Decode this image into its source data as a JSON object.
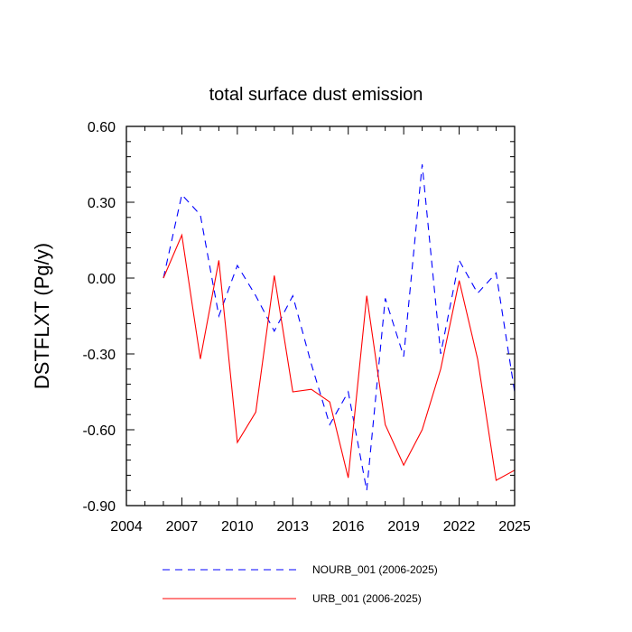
{
  "chart_data": {
    "type": "line",
    "title": "total surface dust emission",
    "xlabel": "",
    "ylabel": "DSTFLXT  (Pg/y)",
    "xlim": [
      2004,
      2025
    ],
    "ylim": [
      -0.9,
      0.6
    ],
    "xticks": [
      2004,
      2007,
      2010,
      2013,
      2016,
      2019,
      2022,
      2025
    ],
    "xtick_labels": [
      "2004",
      "2007",
      "2010",
      "2013",
      "2016",
      "2019",
      "2022",
      "2025"
    ],
    "yticks": [
      -0.9,
      -0.6,
      -0.3,
      0.0,
      0.3,
      0.6
    ],
    "ytick_labels": [
      "-0.90",
      "-0.60",
      "-0.30",
      "0.00",
      "0.30",
      "0.60"
    ],
    "grid": false,
    "legend_position": "bottom",
    "x": [
      2006,
      2007,
      2008,
      2009,
      2010,
      2011,
      2012,
      2013,
      2014,
      2015,
      2016,
      2017,
      2018,
      2019,
      2020,
      2021,
      2022,
      2023,
      2024,
      2025
    ],
    "series": [
      {
        "name": "NOURB_001 (2006-2025)",
        "color": "#0000ff",
        "dash": "dashed",
        "values": [
          0.0,
          0.33,
          0.25,
          -0.15,
          0.05,
          -0.07,
          -0.21,
          -0.07,
          -0.34,
          -0.58,
          -0.45,
          -0.84,
          -0.08,
          -0.31,
          0.45,
          -0.3,
          0.07,
          -0.06,
          0.02,
          -0.45
        ]
      },
      {
        "name": "URB_001 (2006-2025)",
        "color": "#ff0000",
        "dash": "solid",
        "values": [
          0.0,
          0.17,
          -0.32,
          0.07,
          -0.65,
          -0.53,
          0.01,
          -0.45,
          -0.44,
          -0.49,
          -0.79,
          -0.07,
          -0.58,
          -0.74,
          -0.6,
          -0.36,
          -0.01,
          -0.32,
          -0.8,
          -0.76
        ]
      }
    ]
  }
}
